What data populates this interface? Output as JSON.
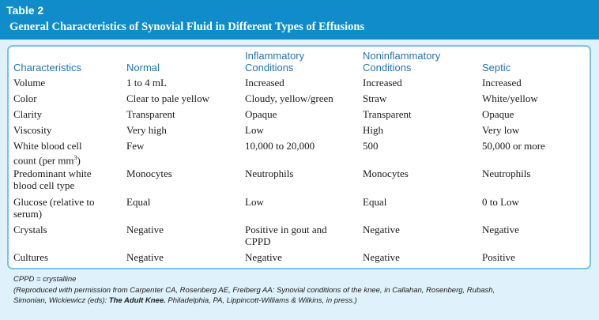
{
  "table": {
    "label": "Table 2",
    "title": "General Characteristics of Synovial Fluid in Different Types of Effusions",
    "columns": [
      "Characteristics",
      "Normal",
      "Inflammatory\nConditions",
      "Noninflammatory\nConditions",
      "Septic"
    ],
    "rows": [
      {
        "c0": "Volume",
        "c1": "1 to 4 mL",
        "c2": "Increased",
        "c3": "Increased",
        "c4": "Increased"
      },
      {
        "c0": "Color",
        "c1": "Clear to pale yellow",
        "c2": "Cloudy, yellow/green",
        "c3": "Straw",
        "c4": "White/yellow"
      },
      {
        "c0": "Clarity",
        "c1": "Transparent",
        "c2": "Opaque",
        "c3": "Transparent",
        "c4": "Opaque"
      },
      {
        "c0": "Viscosity",
        "c1": "Very high",
        "c2": "Low",
        "c3": "High",
        "c4": "Very low"
      },
      {
        "c0a": "White blood cell\n  count (per mm",
        "c0sup": "3",
        "c0b": ")",
        "c1": "Few",
        "c2": "10,000 to 20,000",
        "c3": "500",
        "c4": "50,000 or more"
      },
      {
        "c0": "Predominant white\n  blood cell type",
        "c1": "Monocytes",
        "c2": "Neutrophils",
        "c3": "Monocytes",
        "c4": "Neutrophils"
      },
      {
        "c0": "Glucose (relative to\n  serum)",
        "c1": "Equal",
        "c2": "Low",
        "c3": "Equal",
        "c4": "0 to Low"
      },
      {
        "c0": "Crystals",
        "c1": "Negative",
        "c2": "Positive in gout and\n  CPPD",
        "c3": "Negative",
        "c4": "Negative"
      },
      {
        "c0": "Cultures",
        "c1": "Negative",
        "c2": "Negative",
        "c3": "Negative",
        "c4": "Positive"
      }
    ],
    "footnote_abbrev": "CPPD = crystalline",
    "footnote_source_a": "(Reproduced with permission from Carpenter CA, Rosenberg AE, Freiberg AA: Synovial conditions of the knee, in Callahan, Rosenberg, Rubash,",
    "footnote_source_b": "Simonian, Wickiewicz (eds): ",
    "footnote_source_book": "The Adult Knee.",
    "footnote_source_c": " Philadelphia, PA, Lippincott-Williams & Wilkins, in press.)"
  },
  "colors": {
    "header": "#0f8cc9",
    "background": "#dff1fa",
    "column_heading": "#2275b5",
    "panel_border": "#7cc2e3"
  }
}
